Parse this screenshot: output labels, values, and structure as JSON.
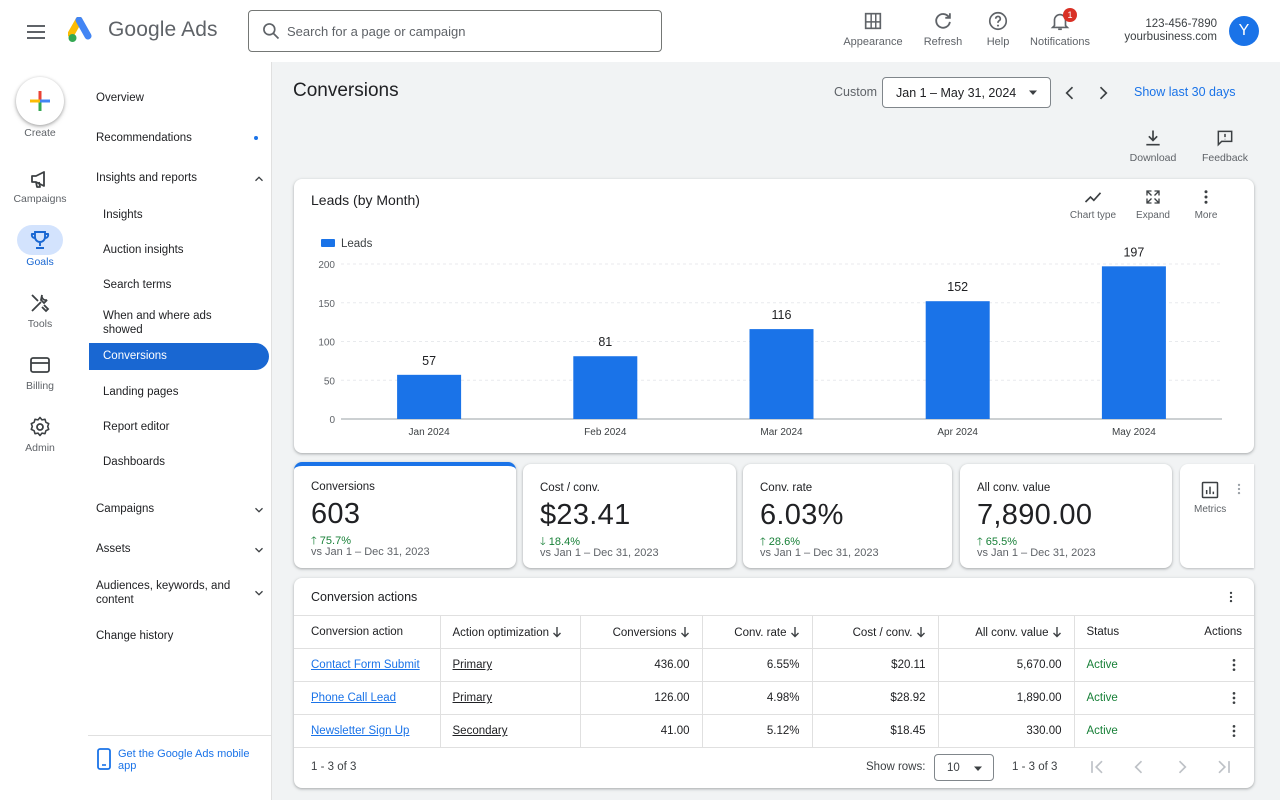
{
  "header": {
    "brand": "Google Ads",
    "search_placeholder": "Search for a page or campaign",
    "buttons": [
      {
        "label": "Appearance",
        "icon": "appearance-icon"
      },
      {
        "label": "Refresh",
        "icon": "refresh-icon"
      },
      {
        "label": "Help",
        "icon": "help-icon"
      },
      {
        "label": "Notifications",
        "icon": "bell-icon",
        "badge": "1"
      }
    ],
    "account_id": "123-456-7890",
    "account_name": "yourbusiness.com",
    "avatar_letter": "Y"
  },
  "rail": {
    "items": [
      {
        "label": "Create",
        "icon": "plus-icon"
      },
      {
        "label": "Campaigns",
        "icon": "megaphone-icon"
      },
      {
        "label": "Goals",
        "icon": "trophy-icon",
        "selected": true
      },
      {
        "label": "Tools",
        "icon": "tools-icon"
      },
      {
        "label": "Billing",
        "icon": "billing-icon"
      },
      {
        "label": "Admin",
        "icon": "gear-icon"
      }
    ]
  },
  "sidenav": {
    "overview": "Overview",
    "recommendations": "Recommendations",
    "insights_reports": "Insights and reports",
    "sub": [
      "Insights",
      "Auction insights",
      "Search terms",
      "When and where ads showed",
      "Conversions",
      "Landing pages",
      "Report editor",
      "Dashboards"
    ],
    "active_item": "Conversions",
    "campaigns": "Campaigns",
    "assets": "Assets",
    "audiences": "Audiences, keywords, and content",
    "change_history": "Change history",
    "mobile_app": "Get the Google Ads mobile app"
  },
  "page": {
    "title": "Conversions",
    "date_custom_label": "Custom",
    "date_range": "Jan 1 – May 31, 2024",
    "show_last": "Show last 30 days",
    "download": "Download",
    "feedback": "Feedback"
  },
  "chart_card": {
    "title": "Leads (by Month)",
    "tools": [
      "Chart type",
      "Expand",
      "More"
    ]
  },
  "chart_data": {
    "type": "bar",
    "categories": [
      "Jan 2024",
      "Feb 2024",
      "Mar 2024",
      "Apr 2024",
      "May 2024"
    ],
    "series": [
      {
        "name": "Leads",
        "values": [
          57,
          81,
          116,
          152,
          197
        ]
      }
    ],
    "ylim": [
      0,
      200
    ],
    "yticks": [
      0,
      50,
      100,
      150,
      200
    ],
    "grid": true,
    "legend": "top-left",
    "color": "#1a73e8"
  },
  "stats": [
    {
      "label": "Conversions",
      "value": "603",
      "change": "75.7%",
      "direction": "up",
      "compare": "vs Jan 1 – Dec 31, 2023"
    },
    {
      "label": "Cost / conv.",
      "value": "$23.41",
      "change": "18.4%",
      "direction": "down",
      "compare": "vs Jan 1 – Dec 31, 2023"
    },
    {
      "label": "Conv. rate",
      "value": "6.03%",
      "change": "28.6%",
      "direction": "up",
      "compare": "vs Jan 1 – Dec 31, 2023"
    },
    {
      "label": "All conv. value",
      "value": "7,890.00",
      "change": "65.5%",
      "direction": "up",
      "compare": "vs Jan 1 – Dec 31, 2023"
    }
  ],
  "metrics_label": "Metrics",
  "table": {
    "title": "Conversion actions",
    "columns": [
      "Conversion action",
      "Action optimization",
      "Conversions",
      "Conv. rate",
      "Cost / conv.",
      "All conv. value",
      "Status",
      "Actions"
    ],
    "rows": [
      [
        "Contact Form Submit",
        "Primary",
        "436.00",
        "6.55%",
        "$20.11",
        "5,670.00",
        "Active"
      ],
      [
        "Phone Call Lead",
        "Primary",
        "126.00",
        "4.98%",
        "$28.92",
        "1,890.00",
        "Active"
      ],
      [
        "Newsletter Sign Up",
        "Secondary",
        "41.00",
        "5.12%",
        "$18.45",
        "330.00",
        "Active"
      ]
    ],
    "range": "1 - 3 of 3",
    "show_rows_label": "Show rows:",
    "rows_per_page": "10",
    "range_right": "1 - 3 of 3"
  },
  "colors": {
    "accent": "#1a73e8",
    "active_nav": "#1967d2",
    "positive": "#188038",
    "badge": "#d93025"
  }
}
